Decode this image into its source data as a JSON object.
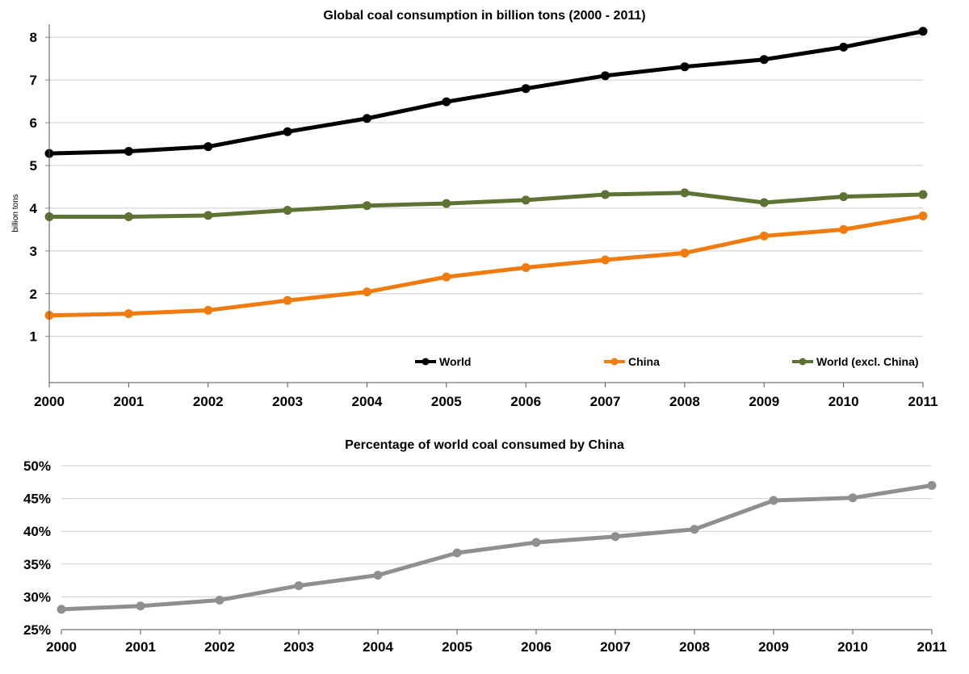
{
  "chart_data": [
    {
      "type": "line",
      "title": "Global coal consumption in billion tons (2000 - 2011)",
      "xlabel": "",
      "ylabel": "billion tons",
      "x": [
        "2000",
        "2001",
        "2002",
        "2003",
        "2004",
        "2005",
        "2006",
        "2007",
        "2008",
        "2009",
        "2010",
        "2011"
      ],
      "y_ticks": [
        "1",
        "2",
        "3",
        "4",
        "5",
        "6",
        "7",
        "8"
      ],
      "ylim": [
        0.05,
        8.4
      ],
      "grid": true,
      "legend_position": "bottom-inside",
      "series": [
        {
          "name": "World",
          "color": "#000000",
          "values": [
            5.28,
            5.33,
            5.44,
            5.79,
            6.1,
            6.49,
            6.8,
            7.1,
            7.31,
            7.48,
            7.77,
            8.14
          ]
        },
        {
          "name": "China",
          "color": "#f07c10",
          "values": [
            1.49,
            1.53,
            1.61,
            1.84,
            2.04,
            2.39,
            2.61,
            2.79,
            2.95,
            3.35,
            3.5,
            3.82
          ]
        },
        {
          "name": "World (excl. China)",
          "color": "#5e7233",
          "values": [
            3.8,
            3.8,
            3.83,
            3.95,
            4.06,
            4.11,
            4.19,
            4.32,
            4.36,
            4.13,
            4.27,
            4.32
          ]
        }
      ]
    },
    {
      "type": "line",
      "title": "Percentage of world coal consumed by China",
      "xlabel": "",
      "ylabel": "",
      "x": [
        "2000",
        "2001",
        "2002",
        "2003",
        "2004",
        "2005",
        "2006",
        "2007",
        "2008",
        "2009",
        "2010",
        "2011"
      ],
      "y_ticks": [
        "25%",
        "30%",
        "35%",
        "40%",
        "45%",
        "50%"
      ],
      "ylim": [
        25,
        50
      ],
      "grid": true,
      "series": [
        {
          "color": "#8f8f8f",
          "values": [
            28.1,
            28.6,
            29.5,
            31.7,
            33.3,
            36.7,
            38.3,
            39.2,
            40.3,
            44.7,
            45.1,
            47.0
          ]
        }
      ]
    }
  ]
}
